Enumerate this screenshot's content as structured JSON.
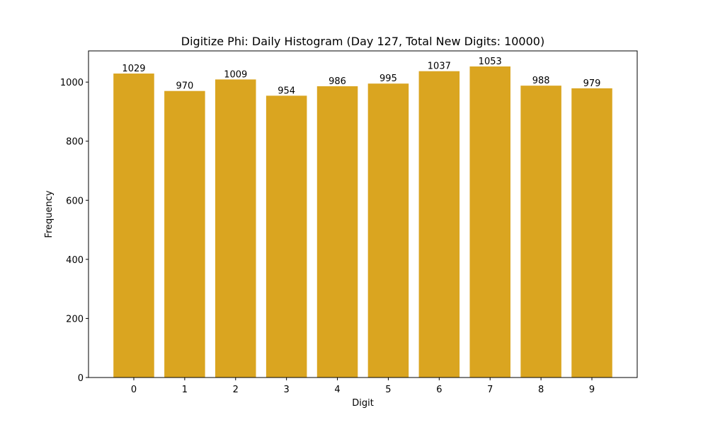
{
  "chart_data": {
    "type": "bar",
    "title": "Digitize Phi: Daily Histogram (Day 127, Total New Digits: 10000)",
    "xlabel": "Digit",
    "ylabel": "Frequency",
    "categories": [
      "0",
      "1",
      "2",
      "3",
      "4",
      "5",
      "6",
      "7",
      "8",
      "9"
    ],
    "values": [
      1029,
      970,
      1009,
      954,
      986,
      995,
      1037,
      1053,
      988,
      979
    ],
    "data_labels": [
      "1029",
      "970",
      "1009",
      "954",
      "986",
      "995",
      "1037",
      "1053",
      "988",
      "979"
    ],
    "ylim": [
      0,
      1105.65
    ],
    "xlim": [
      -0.89,
      9.89
    ],
    "yticks": [
      0,
      200,
      400,
      600,
      800,
      1000
    ],
    "ytick_labels": [
      "0",
      "200",
      "400",
      "600",
      "800",
      "1000"
    ],
    "grid": false,
    "bar_color": "#DAA520"
  }
}
